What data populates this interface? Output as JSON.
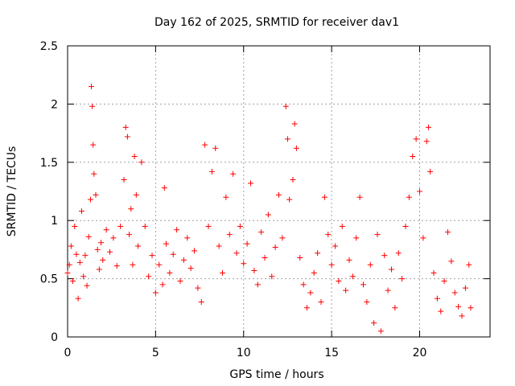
{
  "chart_data": {
    "type": "scatter",
    "title": "Day 162 of 2025, SRMTID for receiver dav1",
    "xlabel": "GPS time / hours",
    "ylabel": "SRMTID / TECUs",
    "xlim": [
      0,
      24
    ],
    "ylim": [
      0,
      2.5
    ],
    "x_ticks": [
      0,
      5,
      10,
      15,
      20
    ],
    "y_ticks": [
      0,
      0.5,
      1,
      1.5,
      2,
      2.5
    ],
    "x_tick_labels": [
      "0",
      "5",
      "10",
      "15",
      "20"
    ],
    "y_tick_labels": [
      "0",
      "0.5",
      "1",
      "1.5",
      "2",
      "2.5"
    ],
    "grid": true,
    "marker": "plus",
    "color": "#ff0000",
    "series": [
      {
        "name": "SRMTID dav1",
        "points": [
          [
            0.0,
            0.55
          ],
          [
            0.1,
            0.62
          ],
          [
            0.2,
            0.78
          ],
          [
            0.3,
            0.48
          ],
          [
            0.4,
            0.95
          ],
          [
            0.5,
            0.71
          ],
          [
            0.6,
            0.33
          ],
          [
            0.7,
            0.64
          ],
          [
            0.8,
            1.08
          ],
          [
            0.9,
            0.52
          ],
          [
            1.0,
            0.7
          ],
          [
            1.1,
            0.44
          ],
          [
            1.2,
            0.86
          ],
          [
            1.3,
            1.18
          ],
          [
            1.35,
            2.15
          ],
          [
            1.4,
            1.98
          ],
          [
            1.45,
            1.65
          ],
          [
            1.5,
            1.4
          ],
          [
            1.6,
            1.22
          ],
          [
            1.7,
            0.75
          ],
          [
            1.8,
            0.58
          ],
          [
            1.9,
            0.81
          ],
          [
            2.0,
            0.66
          ],
          [
            2.2,
            0.92
          ],
          [
            2.4,
            0.73
          ],
          [
            2.6,
            0.85
          ],
          [
            2.8,
            0.61
          ],
          [
            3.0,
            0.95
          ],
          [
            3.2,
            1.35
          ],
          [
            3.3,
            1.8
          ],
          [
            3.4,
            1.72
          ],
          [
            3.5,
            0.88
          ],
          [
            3.6,
            1.1
          ],
          [
            3.7,
            0.62
          ],
          [
            3.8,
            1.55
          ],
          [
            3.9,
            1.22
          ],
          [
            4.0,
            0.78
          ],
          [
            4.2,
            1.5
          ],
          [
            4.4,
            0.95
          ],
          [
            4.6,
            0.52
          ],
          [
            4.8,
            0.7
          ],
          [
            5.0,
            0.38
          ],
          [
            5.2,
            0.62
          ],
          [
            5.4,
            0.45
          ],
          [
            5.5,
            1.28
          ],
          [
            5.6,
            0.8
          ],
          [
            5.8,
            0.55
          ],
          [
            6.0,
            0.71
          ],
          [
            6.2,
            0.92
          ],
          [
            6.4,
            0.48
          ],
          [
            6.6,
            0.66
          ],
          [
            6.8,
            0.85
          ],
          [
            7.0,
            0.59
          ],
          [
            7.2,
            0.74
          ],
          [
            7.4,
            0.42
          ],
          [
            7.6,
            0.3
          ],
          [
            7.8,
            1.65
          ],
          [
            8.0,
            0.95
          ],
          [
            8.2,
            1.42
          ],
          [
            8.4,
            1.62
          ],
          [
            8.6,
            0.78
          ],
          [
            8.8,
            0.55
          ],
          [
            9.0,
            1.2
          ],
          [
            9.2,
            0.88
          ],
          [
            9.4,
            1.4
          ],
          [
            9.6,
            0.72
          ],
          [
            9.8,
            0.95
          ],
          [
            10.0,
            0.63
          ],
          [
            10.2,
            0.8
          ],
          [
            10.4,
            1.32
          ],
          [
            10.6,
            0.57
          ],
          [
            10.8,
            0.45
          ],
          [
            11.0,
            0.9
          ],
          [
            11.2,
            0.68
          ],
          [
            11.4,
            1.05
          ],
          [
            11.6,
            0.52
          ],
          [
            11.8,
            0.77
          ],
          [
            12.0,
            1.22
          ],
          [
            12.2,
            0.85
          ],
          [
            12.4,
            1.98
          ],
          [
            12.5,
            1.7
          ],
          [
            12.6,
            1.18
          ],
          [
            12.8,
            1.35
          ],
          [
            12.9,
            1.83
          ],
          [
            13.0,
            1.62
          ],
          [
            13.2,
            0.68
          ],
          [
            13.4,
            0.45
          ],
          [
            13.6,
            0.25
          ],
          [
            13.8,
            0.38
          ],
          [
            14.0,
            0.55
          ],
          [
            14.2,
            0.72
          ],
          [
            14.4,
            0.3
          ],
          [
            14.6,
            1.2
          ],
          [
            14.8,
            0.88
          ],
          [
            15.0,
            0.62
          ],
          [
            15.2,
            0.78
          ],
          [
            15.4,
            0.48
          ],
          [
            15.6,
            0.95
          ],
          [
            15.8,
            0.4
          ],
          [
            16.0,
            0.66
          ],
          [
            16.2,
            0.52
          ],
          [
            16.4,
            0.85
          ],
          [
            16.6,
            1.2
          ],
          [
            16.8,
            0.45
          ],
          [
            17.0,
            0.3
          ],
          [
            17.2,
            0.62
          ],
          [
            17.4,
            0.12
          ],
          [
            17.6,
            0.88
          ],
          [
            17.8,
            0.05
          ],
          [
            18.0,
            0.7
          ],
          [
            18.2,
            0.4
          ],
          [
            18.4,
            0.58
          ],
          [
            18.6,
            0.25
          ],
          [
            18.8,
            0.72
          ],
          [
            19.0,
            0.5
          ],
          [
            19.2,
            0.95
          ],
          [
            19.4,
            1.2
          ],
          [
            19.6,
            1.55
          ],
          [
            19.8,
            1.7
          ],
          [
            20.0,
            1.25
          ],
          [
            20.2,
            0.85
          ],
          [
            20.4,
            1.68
          ],
          [
            20.5,
            1.8
          ],
          [
            20.6,
            1.42
          ],
          [
            20.8,
            0.55
          ],
          [
            21.0,
            0.33
          ],
          [
            21.2,
            0.22
          ],
          [
            21.4,
            0.48
          ],
          [
            21.6,
            0.9
          ],
          [
            21.8,
            0.65
          ],
          [
            22.0,
            0.38
          ],
          [
            22.2,
            0.26
          ],
          [
            22.4,
            0.18
          ],
          [
            22.6,
            0.42
          ],
          [
            22.8,
            0.62
          ],
          [
            22.9,
            0.25
          ]
        ]
      }
    ]
  }
}
